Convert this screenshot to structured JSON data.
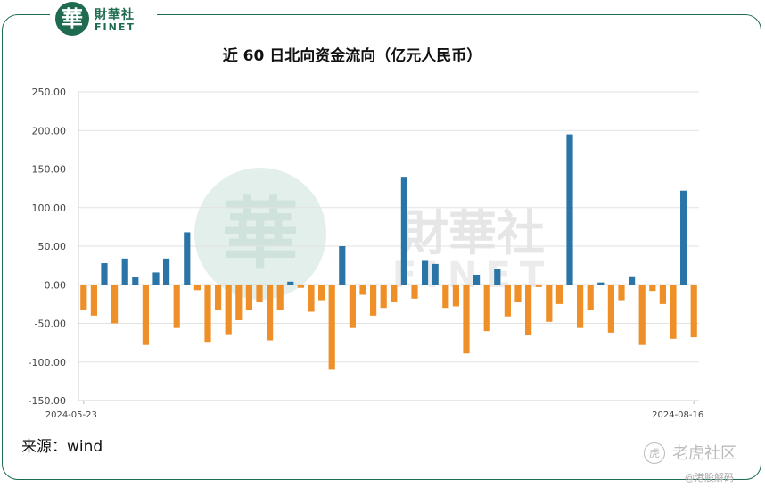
{
  "brand": {
    "badge_char": "華",
    "name_cn": "財華社",
    "name_en": "FINET"
  },
  "chart_data": {
    "type": "bar",
    "title": "近 60 日北向资金流向（亿元人民币）",
    "xlabel": "",
    "ylabel": "",
    "ylim": [
      -150,
      250
    ],
    "yticks": [
      250,
      200,
      150,
      100,
      50,
      0,
      -50,
      -100,
      -150
    ],
    "ytick_labels": [
      "250.00",
      "200.00",
      "150.00",
      "100.00",
      "50.00",
      "0.00",
      "-50.00",
      "-100.00",
      "-150.00"
    ],
    "x_start_label": "2024-05-23",
    "x_end_label": "2024-08-16",
    "grid": true,
    "legend": "none",
    "positive_color": "#2a75a6",
    "negative_color": "#ef8f28",
    "values": [
      -33,
      -40,
      28,
      -50,
      34,
      10,
      -78,
      16,
      34,
      -56,
      68,
      -7,
      -74,
      -33,
      -64,
      -46,
      -33,
      -22,
      -72,
      -33,
      4,
      -4,
      -35,
      -20,
      -110,
      50,
      -56,
      -13,
      -40,
      -30,
      -22,
      140,
      -18,
      31,
      27,
      -30,
      -28,
      -89,
      13,
      -60,
      20,
      -41,
      -22,
      -65,
      -3,
      -48,
      -25,
      195,
      -56,
      -33,
      3,
      -62,
      -20,
      11,
      -78,
      -8,
      -25,
      -70,
      122,
      -68
    ]
  },
  "source": "来源：wind",
  "watermark": {
    "badge": "虎",
    "text": "老虎社区",
    "sub": "@港股解码"
  }
}
